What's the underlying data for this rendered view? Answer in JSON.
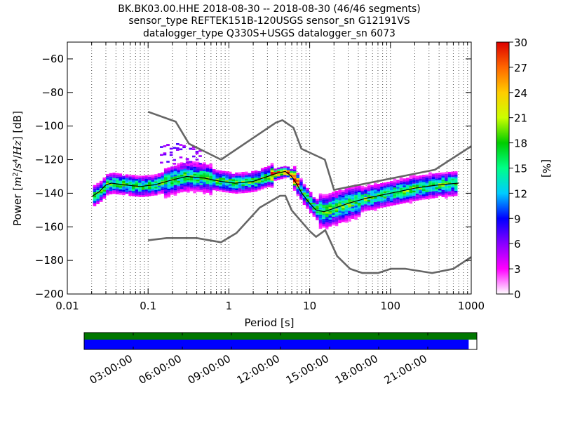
{
  "chart_data": {
    "type": "heatmap",
    "title_lines": [
      "BK.BK03.00.HHE   2018-08-30 -- 2018-08-30  (46/46 segments)",
      "sensor_type REFTEK151B-120USGS sensor_sn G12191VS",
      "datalogger_type Q330S+USGS datalogger_sn 6073"
    ],
    "xlabel": "Period [s]",
    "ylabel": "Power [m²/s⁴/Hz] [dB]",
    "ylabel_parts": {
      "main": "Power [",
      "m": "m",
      "m_exp": "2",
      "mid1": "/",
      "s": "s",
      "s_exp": "4",
      "mid2": "/",
      "hz": "Hz",
      "end": "] [dB]"
    },
    "xscale": "log",
    "xlim": [
      0.01,
      1000
    ],
    "ylim": [
      -200,
      -50
    ],
    "x_ticks": [
      {
        "value": 0.01,
        "label": "0.01"
      },
      {
        "value": 0.1,
        "label": "0.1"
      },
      {
        "value": 1,
        "label": "1"
      },
      {
        "value": 10,
        "label": "10"
      },
      {
        "value": 100,
        "label": "100"
      },
      {
        "value": 1000,
        "label": "1000"
      }
    ],
    "y_ticks": [
      {
        "value": -60,
        "label": "−60"
      },
      {
        "value": -80,
        "label": "−80"
      },
      {
        "value": -100,
        "label": "−100"
      },
      {
        "value": -120,
        "label": "−120"
      },
      {
        "value": -140,
        "label": "−140"
      },
      {
        "value": -160,
        "label": "−160"
      },
      {
        "value": -180,
        "label": "−180"
      },
      {
        "value": -200,
        "label": "−200"
      }
    ],
    "grid": "dotted-x",
    "colorbar": {
      "label": "[%]",
      "min": 0,
      "max": 30,
      "ticks": [
        {
          "value": 30,
          "label": "30"
        },
        {
          "value": 27,
          "label": "27"
        },
        {
          "value": 24,
          "label": "24"
        },
        {
          "value": 21,
          "label": "21"
        },
        {
          "value": 18,
          "label": "18"
        },
        {
          "value": 15,
          "label": "15"
        },
        {
          "value": 12,
          "label": "12"
        },
        {
          "value": 9,
          "label": "9"
        },
        {
          "value": 6,
          "label": "6"
        },
        {
          "value": 3,
          "label": "3"
        },
        {
          "value": 0,
          "label": "0"
        }
      ],
      "colors": [
        "#ffffff",
        "#ff00ff",
        "#8800ff",
        "#0000ff",
        "#00ccff",
        "#00ff88",
        "#00cc00",
        "#ccff00",
        "#ffcc00",
        "#ff6600",
        "#dd0000"
      ]
    },
    "series": [
      {
        "role": "noise-model-high",
        "x": [
          0.1,
          0.22,
          0.32,
          0.8,
          3.8,
          4.6,
          6.3,
          7.9,
          15.4,
          20,
          354.8,
          1000
        ],
        "y": [
          -91.5,
          -97.4,
          -110.5,
          -120,
          -98,
          -96.5,
          -101,
          -113.5,
          -120,
          -138,
          -126,
          -112
        ]
      },
      {
        "role": "noise-model-low",
        "x": [
          0.1,
          0.17,
          0.4,
          0.8,
          1.24,
          2.4,
          4.3,
          5,
          6,
          10,
          12,
          15.6,
          21.9,
          31.6,
          45,
          70,
          101,
          154,
          328,
          600,
          1000
        ],
        "y": [
          -168,
          -166.7,
          -166.7,
          -169.2,
          -163.7,
          -148.6,
          -141.5,
          -141.5,
          -150.2,
          -162.5,
          -166,
          -162,
          -177.5,
          -185,
          -187.5,
          -187.5,
          -185,
          -185,
          -187.5,
          -185,
          -178
        ]
      },
      {
        "role": "mode",
        "x": [
          0.02,
          0.025,
          0.03,
          0.035,
          0.05,
          0.08,
          0.12,
          0.2,
          0.3,
          0.5,
          0.8,
          1.2,
          2,
          3,
          4,
          5,
          6,
          7,
          8,
          10,
          12,
          15,
          20,
          30,
          50,
          100,
          200,
          400,
          700
        ],
        "y": [
          -142,
          -139,
          -135,
          -134,
          -135,
          -136,
          -135,
          -132,
          -130,
          -131,
          -133,
          -134,
          -133,
          -130,
          -128,
          -127,
          -130,
          -135,
          -140,
          -146,
          -150,
          -151,
          -149,
          -146,
          -143,
          -140,
          -137,
          -135,
          -134
        ]
      }
    ],
    "availability": {
      "time_ticks": [
        "03:00:00",
        "06:00:00",
        "09:00:00",
        "12:00:00",
        "15:00:00",
        "18:00:00",
        "21:00:00"
      ],
      "time_tick_hours": [
        3,
        6,
        9,
        12,
        15,
        18,
        21
      ],
      "range_hours": [
        0,
        24
      ],
      "data_coverage_hours": [
        0,
        23.5
      ],
      "gap_coverage_hours": [
        0,
        24
      ],
      "colors": {
        "gaps": "#007700",
        "data": "#0000ff"
      }
    }
  }
}
